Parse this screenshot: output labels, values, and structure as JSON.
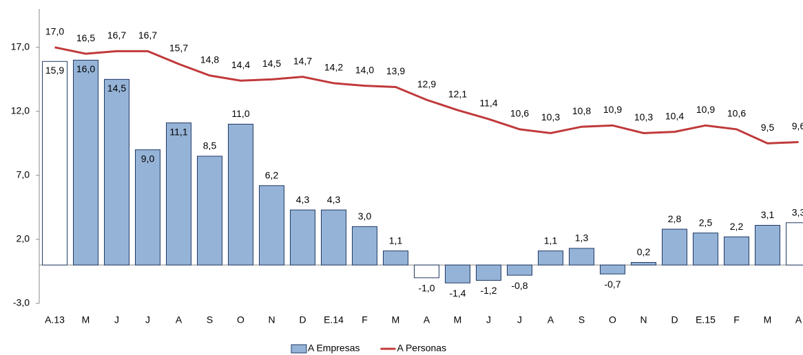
{
  "chart_data": {
    "type": "bar-line",
    "categories": [
      "A.13",
      "M",
      "J",
      "J",
      "A",
      "S",
      "O",
      "N",
      "D",
      "E.14",
      "F",
      "M",
      "A",
      "M",
      "J",
      "J",
      "A",
      "S",
      "O",
      "N",
      "D",
      "E.15",
      "F",
      "M",
      "A"
    ],
    "series": [
      {
        "name": "A Empresas",
        "type": "bar",
        "color": "#95b3d7",
        "stroke": "#1f3864",
        "colors": [
          "#ffffff",
          "#95b3d7",
          "#95b3d7",
          "#95b3d7",
          "#95b3d7",
          "#95b3d7",
          "#95b3d7",
          "#95b3d7",
          "#95b3d7",
          "#95b3d7",
          "#95b3d7",
          "#95b3d7",
          "#ffffff",
          "#95b3d7",
          "#95b3d7",
          "#95b3d7",
          "#95b3d7",
          "#95b3d7",
          "#95b3d7",
          "#95b3d7",
          "#95b3d7",
          "#95b3d7",
          "#95b3d7",
          "#95b3d7",
          "#ffffff"
        ],
        "values": [
          15.9,
          16.0,
          14.5,
          9.0,
          11.1,
          8.5,
          11.0,
          6.2,
          4.3,
          4.3,
          3.0,
          1.1,
          -1.0,
          -1.4,
          -1.2,
          -0.8,
          1.1,
          1.3,
          -0.7,
          0.2,
          2.8,
          2.5,
          2.2,
          3.1,
          3.3
        ],
        "value_labels": [
          "15,9",
          "16,0",
          "14,5",
          "9,0",
          "11,1",
          "8,5",
          "11,0",
          "6,2",
          "4,3",
          "4,3",
          "3,0",
          "1,1",
          "-1,0",
          "-1,4",
          "-1,2",
          "-0,8",
          "1,1",
          "1,3",
          "-0,7",
          "0,2",
          "2,8",
          "2,5",
          "2,2",
          "3,1",
          "3,3"
        ]
      },
      {
        "name": "A Personas",
        "type": "line",
        "color": "#c0393b",
        "values": [
          17.0,
          16.5,
          16.7,
          16.7,
          15.7,
          14.8,
          14.4,
          14.5,
          14.7,
          14.2,
          14.0,
          13.9,
          12.9,
          12.1,
          11.4,
          10.6,
          10.3,
          10.8,
          10.9,
          10.3,
          10.4,
          10.9,
          10.6,
          9.5,
          9.6
        ],
        "value_labels": [
          "17,0",
          "16,5",
          "16,7",
          "16,7",
          "15,7",
          "14,8",
          "14,4",
          "14,5",
          "14,7",
          "14,2",
          "14,0",
          "13,9",
          "12,9",
          "12,1",
          "11,4",
          "10,6",
          "10,3",
          "10,8",
          "10,9",
          "10,3",
          "10,4",
          "10,9",
          "10,6",
          "9,5",
          "9,6"
        ]
      }
    ],
    "ylim": [
      -3,
      20
    ],
    "yticks": [
      {
        "value": -3,
        "label": "-3,0"
      },
      {
        "value": 2,
        "label": "2,0"
      },
      {
        "value": 7,
        "label": "7,0"
      },
      {
        "value": 12,
        "label": "12,0"
      },
      {
        "value": 17,
        "label": "17,0"
      }
    ],
    "legend": "bottom"
  }
}
